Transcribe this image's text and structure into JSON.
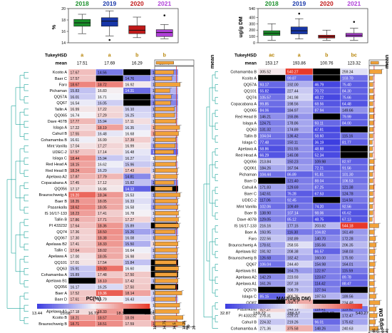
{
  "colors": {
    "low": "#3b3ce0",
    "mid": "#f4f4f8",
    "high": "#e8392a",
    "missing": "#000000",
    "dendrogram": "#1aa39a",
    "box_2018": "#1a8f2a",
    "box_2019": "#1736a8",
    "box_2020": "#c01818",
    "box_2021": "#b040d8",
    "bar_fill": "#f2a23a"
  },
  "chart_data": [
    {
      "type": "heatmap",
      "panel": "left",
      "columns": [
        "2018",
        "2019",
        "2020",
        "2021"
      ],
      "column_colors": [
        "#1a8f2a",
        "#1736a8",
        "#c01818",
        "#b040d8"
      ],
      "tukey_label": "TukeyHSD",
      "tukey": [
        "a",
        "a",
        "b",
        "b"
      ],
      "mean_label": "mean",
      "means": [
        "17.51",
        "17.69",
        "16.29",
        "15.79"
      ],
      "box_ylabel": "%",
      "box_yticks": [
        "14",
        "16",
        "18",
        "20"
      ],
      "box_stats": [
        {
          "min": 15.6,
          "q1": 16.9,
          "median": 17.5,
          "q3": 18.1,
          "max": 19.0,
          "outliers": []
        },
        {
          "min": 15.2,
          "q1": 16.9,
          "median": 17.8,
          "q3": 18.4,
          "max": 19.6,
          "outliers": [
            14.5
          ]
        },
        {
          "min": 14.9,
          "q1": 15.6,
          "median": 16.2,
          "q3": 17.0,
          "max": 18.5,
          "outliers": []
        },
        {
          "min": 14.7,
          "q1": 15.1,
          "median": 15.8,
          "q3": 16.3,
          "max": 17.2,
          "outliers": [
            18.8
          ]
        }
      ],
      "rows": [
        {
          "name": "Kcoito A",
          "values": [
            17.67,
            14.56,
            null,
            14.83
          ]
        },
        {
          "name": "Baer C",
          "values": [
            17.57,
            null,
            14.76,
            15.37
          ]
        },
        {
          "name": "Faro",
          "values": [
            18.67,
            18.72,
            16.92,
            15.7
          ]
        },
        {
          "name": "Pichaman",
          "values": [
            15.83,
            16.83,
            14.31,
            15.6
          ]
        },
        {
          "name": "QQ57A",
          "values": [
            16.01,
            16.71,
            null,
            14.95
          ]
        },
        {
          "name": "QQ67",
          "values": [
            16.54,
            16.05,
            null,
            14.74
          ]
        },
        {
          "name": "Tallin A",
          "values": [
            16.99,
            17.22,
            16.1,
            15.56
          ]
        },
        {
          "name": "QQ065",
          "values": [
            16.74,
            17.29,
            16.25,
            15.79
          ]
        },
        {
          "name": "Dave 407B",
          "values": [
            17.77,
            15.94,
            17.11,
            16.11
          ]
        },
        {
          "name": "Islaga A",
          "values": [
            17.22,
            18.19,
            16.35,
            17.84
          ]
        },
        {
          "name": "Cahuil B",
          "values": [
            17.55,
            16.48,
            16.68,
            18.2
          ]
        },
        {
          "name": "Cohamamba B",
          "values": [
            16.61,
            16.99,
            17.39,
            15.95
          ]
        },
        {
          "name": "Mint Vanilla",
          "values": [
            17.04,
            17.27,
            16.99,
            15.27
          ]
        },
        {
          "name": "UDEC-2",
          "values": [
            17.57,
            17.14,
            16.48,
            14.24
          ]
        },
        {
          "name": "Islaga C",
          "values": [
            18.44,
            15.94,
            16.27,
            16.8
          ]
        },
        {
          "name": "Red Head A",
          "values": [
            18.15,
            16.62,
            15.96,
            16.0
          ]
        },
        {
          "name": "Red Head B",
          "values": [
            18.24,
            16.29,
            17.43,
            16.0
          ]
        },
        {
          "name": "Apelawa A2",
          "values": [
            17.87,
            17.79,
            14.81,
            17.29
          ]
        },
        {
          "name": "Copacabana A",
          "values": [
            17.45,
            17.12,
            15.82,
            14.95
          ]
        },
        {
          "name": "QQ056",
          "values": [
            17.17,
            16.96,
            14.12,
            null
          ]
        },
        {
          "name": "Braunschweig A",
          "values": [
            19.2,
            18.34,
            16.53,
            15.7
          ]
        },
        {
          "name": "Baer B",
          "values": [
            18.35,
            18.05,
            16.33,
            15.47
          ]
        },
        {
          "name": "Pasankalla",
          "values": [
            18.62,
            18.05,
            16.58,
            15.13
          ]
        },
        {
          "name": "IS 16/17-133",
          "values": [
            18.23,
            17.41,
            16.78,
            16.3
          ]
        },
        {
          "name": "Tallin B",
          "values": [
            17.86,
            17.71,
            17.27,
            15.91
          ]
        },
        {
          "name": "PI 433232",
          "values": [
            17.64,
            18.36,
            15.89,
            null
          ]
        },
        {
          "name": "QQ74",
          "values": [
            17.36,
            18.5,
            15.26,
            15.22
          ]
        },
        {
          "name": "QQ067",
          "values": [
            17.3,
            18.38,
            16.08,
            15.91
          ]
        },
        {
          "name": "Apelawa B2",
          "values": [
            17.41,
            18.33,
            15.5,
            17.19
          ]
        },
        {
          "name": "Tallin C",
          "values": [
            17.64,
            18.02,
            16.64,
            15.82
          ]
        },
        {
          "name": "Apelawa A",
          "values": [
            17.0,
            18.05,
            16.98,
            15.89
          ]
        },
        {
          "name": "QQ101",
          "values": [
            17.01,
            17.54,
            15.84,
            null
          ]
        },
        {
          "name": "QQ63",
          "values": [
            15.91,
            19.0,
            16.6,
            null
          ]
        },
        {
          "name": "Cohamamba A",
          "values": [
            15.89,
            17.48,
            17.5,
            null
          ]
        },
        {
          "name": "Apelawa B1",
          "values": [
            null,
            18.1,
            17.42,
            15.72
          ]
        },
        {
          "name": "QQ056",
          "values": [
            16.17,
            16.25,
            17.5,
            null
          ]
        },
        {
          "name": "Baer A",
          "values": [
            17.52,
            19.36,
            18.14,
            16.12
          ]
        },
        {
          "name": "Baer D",
          "values": [
            17.61,
            16.79,
            16.43,
            15.69
          ]
        },
        {
          "name": "QQ061",
          "values": [
            17.76,
            18.38,
            16.98,
            16.35
          ]
        },
        {
          "name": "Apelawa A1",
          "values": [
            17.18,
            18.33,
            null,
            16.4
          ]
        },
        {
          "name": "Kcoito B",
          "values": [
            18.21,
            18.57,
            18.09,
            17.27
          ]
        },
        {
          "name": "Braunschweig B",
          "values": [
            18.71,
            18.51,
            17.59,
            18.64
          ]
        }
      ],
      "row_means": [
        16.35,
        16.0,
        17.5,
        15.65,
        15.9,
        15.8,
        16.45,
        16.5,
        16.75,
        17.4,
        17.2,
        16.7,
        16.6,
        16.35,
        16.85,
        16.7,
        17.0,
        16.95,
        16.4,
        16.1,
        17.5,
        17.05,
        17.1,
        17.2,
        17.2,
        17.3,
        16.6,
        16.9,
        17.1,
        17.0,
        17.0,
        16.8,
        17.2,
        16.95,
        17.1,
        16.65,
        17.8,
        16.65,
        17.4,
        17.3,
        18.0,
        18.35
      ],
      "mean_axis_ticks": [
        "13",
        "14.75",
        "16.5",
        "18.25",
        "20"
      ],
      "mean_axis_label": "%",
      "mean_axis_range": [
        13,
        20
      ],
      "colorbar_ticks": [
        "13.44",
        "15.08",
        "16.73",
        "18.37",
        "20.01"
      ],
      "colorbar_range": [
        13.44,
        20.01
      ],
      "colorbar_label": "PC(%)"
    },
    {
      "type": "heatmap",
      "panel": "right",
      "columns": [
        "2018",
        "2019",
        "2020",
        "2021"
      ],
      "column_colors": [
        "#1a8f2a",
        "#1736a8",
        "#c01818",
        "#b040d8"
      ],
      "tukey_label": "TukeyHSD",
      "tukey": [
        "ac",
        "a",
        "b",
        "bc"
      ],
      "mean_label": "mean",
      "means": [
        "153.17",
        "193.86",
        "100.76",
        "123.32"
      ],
      "box_ylabel": "ug/g DM",
      "box_yticks": [
        "0",
        "100",
        "200",
        "300",
        "400",
        "540"
      ],
      "box_stats": [
        {
          "min": 40,
          "q1": 115,
          "median": 150,
          "q3": 190,
          "max": 300,
          "outliers": []
        },
        {
          "min": 60,
          "q1": 140,
          "median": 190,
          "q3": 250,
          "max": 380,
          "outliers": [
            460
          ]
        },
        {
          "min": 40,
          "q1": 75,
          "median": 95,
          "q3": 120,
          "max": 200,
          "outliers": []
        },
        {
          "min": 40,
          "q1": 95,
          "median": 120,
          "q3": 150,
          "max": 230,
          "outliers": [
            330
          ]
        }
      ],
      "rows": [
        {
          "name": "Cohamamba B",
          "values": [
            305.52,
            540.27,
            null,
            259.34
          ]
        },
        {
          "name": "Kcoito A",
          "values": [
            null,
            99.87,
            null,
            103.7
          ]
        },
        {
          "name": "QQ57A",
          "values": [
            93.17,
            192.0,
            46.79,
            75.4
          ]
        },
        {
          "name": "QQ101",
          "values": [
            55.82,
            227.44,
            70.72,
            84.3
          ]
        },
        {
          "name": "QQ74",
          "values": [
            105.57,
            241.98,
            48.22,
            75.66
          ]
        },
        {
          "name": "Copacabana A",
          "values": [
            99.85,
            198.56,
            68.56,
            64.48
          ]
        },
        {
          "name": "QQ065",
          "values": [
            84.06,
            184.97,
            87.94,
            149.66
          ]
        },
        {
          "name": "Red Head B",
          "values": [
            146.21,
            155.86,
            null,
            79.99
          ]
        },
        {
          "name": "Islaga A",
          "values": [
            124.71,
            178.86,
            93.11,
            84.0
          ]
        },
        {
          "name": "QQ63",
          "values": [
            131.32,
            174.89,
            47.81,
            null
          ]
        },
        {
          "name": "Tallin B",
          "values": [
            104.04,
            136.42,
            58.6,
            115.16
          ]
        },
        {
          "name": "Islaga C",
          "values": [
            77.48,
            150.11,
            36.19,
            81.77
          ]
        },
        {
          "name": "Apelawa A",
          "values": [
            58.86,
            151.55,
            48.88,
            null
          ]
        },
        {
          "name": "Red Head A",
          "values": [
            66.29,
            145.08,
            52.34,
            null
          ]
        },
        {
          "name": "QQ056",
          "values": [
            213.84,
            150.23,
            109.98,
            82.97
          ]
        },
        {
          "name": "QQ061",
          "values": [
            184.26,
            167.94,
            72.21,
            91.56
          ]
        },
        {
          "name": "Pichaman",
          "values": [
            104.44,
            86.89,
            91.81,
            101.3
          ]
        },
        {
          "name": "Baer D",
          "values": [
            null,
            121.4,
            88.04,
            106.53
          ]
        },
        {
          "name": "Cahuil A",
          "values": [
            171.83,
            129.69,
            87.25,
            121.38
          ]
        },
        {
          "name": "Baer C",
          "values": [
            142.61,
            76.28,
            67.53,
            124.78
          ]
        },
        {
          "name": "UDEC-2",
          "values": [
            117.06,
            92.45,
            null,
            114.56
          ]
        },
        {
          "name": "Mint Vanilla",
          "values": [
            102.06,
            109.49,
            74.2,
            92.56
          ]
        },
        {
          "name": "Baer B",
          "values": [
            138.9,
            107.14,
            98.06,
            65.62
          ]
        },
        {
          "name": "Dave 407B",
          "values": [
            129.05,
            85.12,
            48.75,
            67.13
          ]
        },
        {
          "name": "IS 16/17-133",
          "values": [
            216.16,
            177.15,
            203.82,
            544.18
          ]
        },
        {
          "name": "Baer A",
          "values": [
            193.95,
            116.3,
            104.82,
            161.49
          ]
        },
        {
          "name": "Faro",
          "values": [
            222.56,
            192.89,
            140.7,
            172.28
          ]
        },
        {
          "name": "Braunschweig A",
          "values": [
            178.61,
            258.55,
            155.66,
            206.35
          ]
        },
        {
          "name": "Apelawa B2",
          "values": [
            191.92,
            208.38,
            86.57,
            168.03
          ]
        },
        {
          "name": "Braunschweig B",
          "values": [
            126.68,
            182.42,
            160.0,
            175.9
          ]
        },
        {
          "name": "QQ67",
          "values": [
            106.04,
            244.4,
            154.98,
            164.01
          ]
        },
        {
          "name": "Apelawa B1",
          "values": [
            null,
            164.75,
            122.97,
            115.59
          ]
        },
        {
          "name": "Apelawa A2",
          "values": [
            142.29,
            223.93,
            123.67,
            89.78
          ]
        },
        {
          "name": "Apelawa A1",
          "values": [
            161.26,
            207.18,
            114.42,
            88.47
          ]
        },
        {
          "name": "QQ57B",
          "values": [
            null,
            208.79,
            127.94,
            null
          ]
        },
        {
          "name": "Islaga C",
          "values": [
            85.15,
            306.76,
            197.53,
            189.56
          ]
        },
        {
          "name": "QQ87",
          "values": [
            null,
            388.71,
            null,
            234.48
          ]
        },
        {
          "name": "Pasankalla",
          "values": [
            327.27,
            243.13,
            115.41,
            113.52
          ]
        },
        {
          "name": "PI 433232",
          "values": [
            278.31,
            229.31,
            null,
            172.47
          ]
        },
        {
          "name": "Cahuil B",
          "values": [
            224.32,
            219.26,
            96.01,
            175.62
          ]
        },
        {
          "name": "Cohamamba A",
          "values": [
            271.36,
            375.58,
            148.26,
            240.63
          ]
        }
      ],
      "row_means": [
        370,
        100,
        105,
        110,
        120,
        105,
        125,
        125,
        120,
        115,
        105,
        85,
        90,
        90,
        140,
        130,
        95,
        105,
        128,
        105,
        108,
        95,
        102,
        82,
        280,
        145,
        182,
        200,
        165,
        160,
        168,
        135,
        145,
        143,
        168,
        195,
        312,
        200,
        228,
        180,
        260
      ],
      "mean_axis_ticks": [
        "0",
        "135",
        "270",
        "405",
        "540"
      ],
      "mean_axis_label": "ug/g DM",
      "mean_axis_range": [
        0,
        540
      ],
      "colorbar_ticks": [
        "32.87",
        "159.72",
        "286.57",
        "413.42",
        "540.27"
      ],
      "colorbar_range": [
        32.87,
        540.27
      ],
      "colorbar_label": "MAU(ug/g DM)"
    }
  ]
}
